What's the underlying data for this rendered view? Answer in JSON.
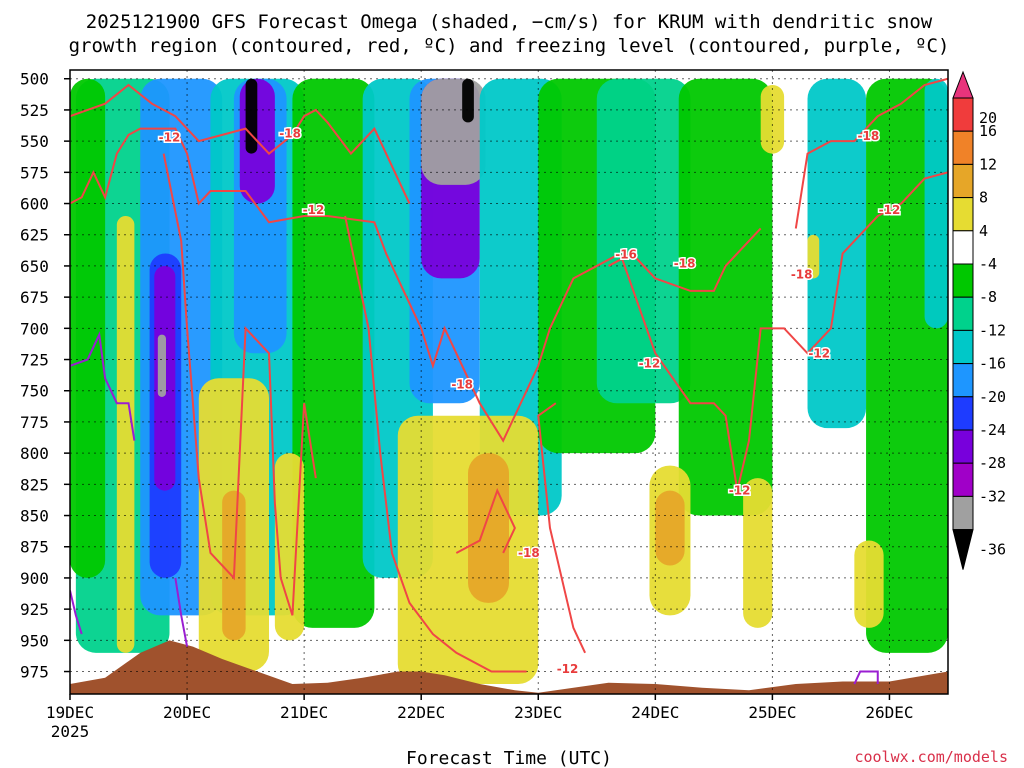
{
  "chart_data": {
    "type": "heatmap",
    "title_lines": [
      "2025121900 GFS Forecast Omega (shaded, −cm/s) for KRUM with dendritic snow",
      "growth region (contoured, red, ºC) and freezing level (contoured, purple, ºC)"
    ],
    "xlabel": "Forecast Time (UTC)",
    "x_ticks": [
      {
        "label": "19DEC",
        "sub": "2025",
        "day": 0
      },
      {
        "label": "20DEC",
        "sub": "",
        "day": 1
      },
      {
        "label": "21DEC",
        "sub": "",
        "day": 2
      },
      {
        "label": "22DEC",
        "sub": "",
        "day": 3
      },
      {
        "label": "23DEC",
        "sub": "",
        "day": 4
      },
      {
        "label": "24DEC",
        "sub": "",
        "day": 5
      },
      {
        "label": "25DEC",
        "sub": "",
        "day": 6
      },
      {
        "label": "26DEC",
        "sub": "",
        "day": 7
      }
    ],
    "xlim_days": [
      0,
      7.5
    ],
    "y_ticks": [
      500,
      525,
      550,
      575,
      600,
      625,
      650,
      675,
      700,
      725,
      750,
      775,
      800,
      825,
      850,
      875,
      900,
      925,
      950,
      975
    ],
    "ylim_hpa": [
      493,
      993
    ],
    "grid": true,
    "colorbar": {
      "labels": [
        "20",
        "16",
        "12",
        "8",
        "4",
        "-4",
        "-8",
        "-12",
        "-16",
        "-20",
        "-24",
        "-28",
        "-32",
        "-36"
      ],
      "bins": [
        {
          "low": 20,
          "high": null,
          "color": "#e8347c"
        },
        {
          "low": 16,
          "high": 20,
          "color": "#f03c3c"
        },
        {
          "low": 12,
          "high": 16,
          "color": "#f08228"
        },
        {
          "low": 8,
          "high": 12,
          "color": "#e6a628"
        },
        {
          "low": 4,
          "high": 8,
          "color": "#e6dc32"
        },
        {
          "low": -4,
          "high": 4,
          "color": "#ffffff"
        },
        {
          "low": -8,
          "high": -4,
          "color": "#00c800"
        },
        {
          "low": -12,
          "high": -8,
          "color": "#00d28c"
        },
        {
          "low": -16,
          "high": -12,
          "color": "#00c8c8"
        },
        {
          "low": -20,
          "high": -16,
          "color": "#1e96ff"
        },
        {
          "low": -24,
          "high": -20,
          "color": "#1e3cff"
        },
        {
          "low": -28,
          "high": -24,
          "color": "#7800dc"
        },
        {
          "low": -32,
          "high": -28,
          "color": "#a000c8"
        },
        {
          "low": -36,
          "high": -32,
          "color": "#a0a0a0"
        },
        {
          "low": null,
          "high": -36,
          "color": "#000000"
        }
      ]
    },
    "omega_regions": [
      {
        "value": -10,
        "t": [
          0.05,
          0.85
        ],
        "p": [
          500,
          960
        ]
      },
      {
        "value": -6,
        "t": [
          0.0,
          0.3
        ],
        "p": [
          500,
          900
        ]
      },
      {
        "value": -18,
        "t": [
          0.6,
          1.3
        ],
        "p": [
          500,
          930
        ]
      },
      {
        "value": -22,
        "t": [
          0.68,
          0.95
        ],
        "p": [
          640,
          900
        ]
      },
      {
        "value": -26,
        "t": [
          0.72,
          0.9
        ],
        "p": [
          650,
          830
        ]
      },
      {
        "value": -34,
        "t": [
          0.75,
          0.82
        ],
        "p": [
          705,
          755
        ]
      },
      {
        "value": -14,
        "t": [
          1.2,
          2.0
        ],
        "p": [
          500,
          930
        ]
      },
      {
        "value": -20,
        "t": [
          1.4,
          1.85
        ],
        "p": [
          500,
          720
        ]
      },
      {
        "value": -26,
        "t": [
          1.45,
          1.75
        ],
        "p": [
          500,
          600
        ]
      },
      {
        "value": -38,
        "t": [
          1.5,
          1.6
        ],
        "p": [
          500,
          560
        ]
      },
      {
        "value": -8,
        "t": [
          1.9,
          2.6
        ],
        "p": [
          500,
          940
        ]
      },
      {
        "value": -14,
        "t": [
          2.5,
          3.1
        ],
        "p": [
          500,
          900
        ]
      },
      {
        "value": -18,
        "t": [
          2.9,
          3.5
        ],
        "p": [
          500,
          760
        ]
      },
      {
        "value": -26,
        "t": [
          3.0,
          3.5
        ],
        "p": [
          500,
          660
        ]
      },
      {
        "value": -34,
        "t": [
          3.0,
          3.55
        ],
        "p": [
          500,
          585
        ]
      },
      {
        "value": -38,
        "t": [
          3.35,
          3.45
        ],
        "p": [
          500,
          535
        ]
      },
      {
        "value": -16,
        "t": [
          3.5,
          4.2
        ],
        "p": [
          500,
          850
        ]
      },
      {
        "value": -8,
        "t": [
          4.0,
          5.0
        ],
        "p": [
          500,
          800
        ]
      },
      {
        "value": -12,
        "t": [
          4.5,
          5.3
        ],
        "p": [
          500,
          760
        ]
      },
      {
        "value": -6,
        "t": [
          5.2,
          6.0
        ],
        "p": [
          500,
          850
        ]
      },
      {
        "value": -14,
        "t": [
          6.3,
          6.8
        ],
        "p": [
          500,
          780
        ]
      },
      {
        "value": -6,
        "t": [
          6.8,
          7.5
        ],
        "p": [
          500,
          960
        ]
      },
      {
        "value": -14,
        "t": [
          7.3,
          7.5
        ],
        "p": [
          500,
          700
        ]
      },
      {
        "value": 6,
        "t": [
          0.4,
          0.55
        ],
        "p": [
          610,
          960
        ]
      },
      {
        "value": 6,
        "t": [
          1.1,
          1.7
        ],
        "p": [
          740,
          975
        ]
      },
      {
        "value": 10,
        "t": [
          1.3,
          1.5
        ],
        "p": [
          830,
          950
        ]
      },
      {
        "value": 6,
        "t": [
          1.75,
          2.0
        ],
        "p": [
          800,
          950
        ]
      },
      {
        "value": 6,
        "t": [
          2.8,
          4.0
        ],
        "p": [
          770,
          985
        ]
      },
      {
        "value": 10,
        "t": [
          3.4,
          3.75
        ],
        "p": [
          800,
          920
        ]
      },
      {
        "value": 6,
        "t": [
          4.95,
          5.3
        ],
        "p": [
          810,
          930
        ]
      },
      {
        "value": 10,
        "t": [
          5.0,
          5.25
        ],
        "p": [
          830,
          890
        ]
      },
      {
        "value": 6,
        "t": [
          5.75,
          6.0
        ],
        "p": [
          820,
          940
        ]
      },
      {
        "value": 6,
        "t": [
          6.7,
          6.95
        ],
        "p": [
          870,
          940
        ]
      },
      {
        "value": 6,
        "t": [
          5.9,
          6.1
        ],
        "p": [
          505,
          560
        ]
      },
      {
        "value": 6,
        "t": [
          6.3,
          6.4
        ],
        "p": [
          625,
          660
        ]
      }
    ],
    "dgz_contours": [
      {
        "value": -12,
        "points": [
          [
            0.0,
            600
          ],
          [
            0.1,
            595
          ],
          [
            0.2,
            575
          ],
          [
            0.3,
            595
          ],
          [
            0.4,
            560
          ],
          [
            0.5,
            545
          ],
          [
            0.6,
            540
          ],
          [
            0.9,
            540
          ],
          [
            1.0,
            560
          ],
          [
            1.1,
            600
          ],
          [
            1.2,
            590
          ],
          [
            1.5,
            590
          ],
          [
            1.7,
            615
          ],
          [
            2.0,
            610
          ],
          [
            2.2,
            610
          ],
          [
            2.6,
            615
          ],
          [
            2.7,
            640
          ],
          [
            3.0,
            700
          ],
          [
            3.1,
            730
          ],
          [
            3.2,
            700
          ],
          [
            3.3,
            720
          ],
          [
            3.5,
            760
          ],
          [
            3.7,
            790
          ],
          [
            4.0,
            730
          ],
          [
            4.1,
            700
          ],
          [
            4.3,
            660
          ],
          [
            4.5,
            650
          ],
          [
            4.7,
            640
          ],
          [
            5.0,
            720
          ],
          [
            5.3,
            760
          ],
          [
            5.5,
            760
          ],
          [
            5.6,
            770
          ],
          [
            5.7,
            830
          ],
          [
            5.8,
            790
          ],
          [
            5.9,
            700
          ],
          [
            6.1,
            700
          ],
          [
            6.3,
            720
          ],
          [
            6.5,
            700
          ],
          [
            6.6,
            640
          ],
          [
            6.9,
            610
          ],
          [
            7.1,
            600
          ],
          [
            7.3,
            580
          ],
          [
            7.5,
            575
          ]
        ]
      },
      {
        "value": -12,
        "points": [
          [
            0.8,
            560
          ],
          [
            0.95,
            630
          ],
          [
            1.0,
            700
          ],
          [
            1.05,
            760
          ],
          [
            1.1,
            820
          ],
          [
            1.2,
            880
          ],
          [
            1.4,
            900
          ],
          [
            1.5,
            700
          ],
          [
            1.7,
            720
          ],
          [
            1.75,
            840
          ],
          [
            1.8,
            900
          ],
          [
            1.9,
            930
          ],
          [
            2.0,
            760
          ],
          [
            2.1,
            820
          ]
        ]
      },
      {
        "value": -12,
        "points": [
          [
            2.35,
            610
          ],
          [
            2.55,
            700
          ],
          [
            2.65,
            800
          ],
          [
            2.75,
            880
          ],
          [
            2.9,
            920
          ],
          [
            3.1,
            945
          ],
          [
            3.3,
            960
          ],
          [
            3.6,
            975
          ],
          [
            3.9,
            975
          ]
        ]
      },
      {
        "value": -12,
        "points": [
          [
            4.15,
            760
          ],
          [
            4.0,
            770
          ],
          [
            4.1,
            860
          ],
          [
            4.2,
            900
          ],
          [
            4.3,
            940
          ],
          [
            4.4,
            960
          ]
        ]
      },
      {
        "value": -18,
        "points": [
          [
            0.0,
            530
          ],
          [
            0.3,
            520
          ],
          [
            0.5,
            505
          ],
          [
            0.7,
            520
          ],
          [
            0.9,
            530
          ],
          [
            1.1,
            550
          ],
          [
            1.3,
            545
          ],
          [
            1.5,
            540
          ],
          [
            1.7,
            560
          ],
          [
            1.9,
            545
          ],
          [
            2.0,
            530
          ],
          [
            2.1,
            525
          ],
          [
            2.2,
            535
          ],
          [
            2.4,
            560
          ],
          [
            2.6,
            540
          ],
          [
            2.8,
            580
          ],
          [
            2.9,
            600
          ]
        ]
      },
      {
        "value": -18,
        "points": [
          [
            3.3,
            880
          ],
          [
            3.5,
            870
          ],
          [
            3.65,
            830
          ],
          [
            3.8,
            860
          ],
          [
            3.7,
            880
          ]
        ]
      },
      {
        "value": -18,
        "points": [
          [
            4.6,
            650
          ],
          [
            4.8,
            640
          ],
          [
            5.0,
            660
          ],
          [
            5.3,
            670
          ],
          [
            5.5,
            670
          ],
          [
            5.6,
            650
          ],
          [
            5.7,
            640
          ],
          [
            5.9,
            620
          ]
        ]
      },
      {
        "value": -18,
        "points": [
          [
            6.2,
            620
          ],
          [
            6.3,
            560
          ],
          [
            6.5,
            550
          ],
          [
            6.7,
            550
          ],
          [
            6.9,
            530
          ],
          [
            7.1,
            520
          ],
          [
            7.3,
            505
          ],
          [
            7.5,
            500
          ]
        ]
      }
    ],
    "contour_labels": [
      {
        "text": "-12",
        "day": 0.85,
        "p": 547
      },
      {
        "text": "-18",
        "day": 1.88,
        "p": 544
      },
      {
        "text": "-12",
        "day": 2.08,
        "p": 605
      },
      {
        "text": "-18",
        "day": 3.35,
        "p": 745
      },
      {
        "text": "-18",
        "day": 3.92,
        "p": 880
      },
      {
        "text": "-12",
        "day": 4.25,
        "p": 973
      },
      {
        "text": "-16",
        "day": 4.75,
        "p": 641
      },
      {
        "text": "-18",
        "day": 5.25,
        "p": 648
      },
      {
        "text": "-12",
        "day": 4.95,
        "p": 728
      },
      {
        "text": "-12",
        "day": 5.72,
        "p": 830
      },
      {
        "text": "-18",
        "day": 6.25,
        "p": 657
      },
      {
        "text": "-12",
        "day": 6.4,
        "p": 720
      },
      {
        "text": "-18",
        "day": 6.82,
        "p": 546
      },
      {
        "text": "-12",
        "day": 7.0,
        "p": 605
      }
    ],
    "freezing_level": [
      {
        "points": [
          [
            0.0,
            730
          ],
          [
            0.15,
            725
          ],
          [
            0.25,
            705
          ],
          [
            0.3,
            740
          ],
          [
            0.4,
            760
          ],
          [
            0.5,
            760
          ],
          [
            0.55,
            790
          ]
        ]
      },
      {
        "points": [
          [
            0.0,
            910
          ],
          [
            0.05,
            930
          ],
          [
            0.1,
            945
          ]
        ]
      },
      {
        "points": [
          [
            0.9,
            900
          ],
          [
            0.95,
            930
          ],
          [
            1.0,
            955
          ]
        ]
      },
      {
        "points": [
          [
            6.7,
            985
          ],
          [
            6.75,
            975
          ],
          [
            6.9,
            975
          ],
          [
            6.9,
            985
          ]
        ]
      }
    ],
    "terrain": {
      "color": "#a0522d",
      "points": [
        [
          0.0,
          985
        ],
        [
          0.3,
          980
        ],
        [
          0.6,
          960
        ],
        [
          0.85,
          950
        ],
        [
          1.05,
          955
        ],
        [
          1.3,
          965
        ],
        [
          1.6,
          975
        ],
        [
          1.9,
          985
        ],
        [
          2.2,
          984
        ],
        [
          2.5,
          980
        ],
        [
          2.8,
          975
        ],
        [
          3.0,
          975
        ],
        [
          3.2,
          978
        ],
        [
          3.5,
          985
        ],
        [
          3.8,
          990
        ],
        [
          4.0,
          992
        ],
        [
          4.3,
          988
        ],
        [
          4.6,
          984
        ],
        [
          5.0,
          985
        ],
        [
          5.4,
          988
        ],
        [
          5.8,
          990
        ],
        [
          6.2,
          985
        ],
        [
          6.6,
          983
        ],
        [
          7.0,
          983
        ],
        [
          7.5,
          975
        ]
      ]
    }
  },
  "credit": "coolwx.com/models"
}
